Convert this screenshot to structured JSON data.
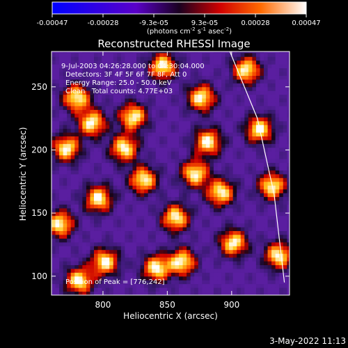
{
  "chart_data": {
    "type": "heatmap",
    "title": "Reconstructed RHESSI Image",
    "xlabel": "Heliocentric X (arcsec)",
    "ylabel": "Heliocentric Y (arcsec)",
    "xlim": [
      760,
      945
    ],
    "ylim": [
      85,
      278
    ],
    "xticks": [
      800,
      850,
      900
    ],
    "yticks": [
      100,
      150,
      200,
      250
    ],
    "colorbar": {
      "tick_labels": [
        "-0.00047",
        "-0.00028",
        "-9.3e-05",
        "9.3e-05",
        "0.00028",
        "0.00047"
      ],
      "unit_label": "(photons cm^-2 s^-1 asec^-2)",
      "range": [
        -0.00047,
        0.00047
      ]
    },
    "annotations": {
      "time": "9-Jul-2003 04:26:28.000 to 04:30:04.000",
      "detectors": "Detectors: 3F 4F 5F 6F 7F 8F, Att 0",
      "energy": "Energy Range: 25.0 - 50.0 keV",
      "clean": "Clean   Total counts: 4.77E+03",
      "peak": "Position of Peak = [776,242]"
    },
    "hotspots": [
      {
        "x": 778,
        "y": 240
      },
      {
        "x": 790,
        "y": 220
      },
      {
        "x": 822,
        "y": 225
      },
      {
        "x": 770,
        "y": 200
      },
      {
        "x": 845,
        "y": 265
      },
      {
        "x": 875,
        "y": 240
      },
      {
        "x": 910,
        "y": 262
      },
      {
        "x": 830,
        "y": 175
      },
      {
        "x": 870,
        "y": 180
      },
      {
        "x": 795,
        "y": 160
      },
      {
        "x": 765,
        "y": 140
      },
      {
        "x": 855,
        "y": 145
      },
      {
        "x": 890,
        "y": 165
      },
      {
        "x": 930,
        "y": 170
      },
      {
        "x": 800,
        "y": 110
      },
      {
        "x": 840,
        "y": 105
      },
      {
        "x": 780,
        "y": 95
      },
      {
        "x": 900,
        "y": 125
      },
      {
        "x": 935,
        "y": 115
      },
      {
        "x": 815,
        "y": 200
      },
      {
        "x": 880,
        "y": 205
      },
      {
        "x": 920,
        "y": 215
      },
      {
        "x": 860,
        "y": 110
      }
    ],
    "limb": [
      {
        "x": 897,
        "y": 282
      },
      {
        "x": 920,
        "y": 225
      },
      {
        "x": 933,
        "y": 165
      },
      {
        "x": 941,
        "y": 95
      }
    ]
  },
  "footer_date": "3-May-2022 11:13"
}
